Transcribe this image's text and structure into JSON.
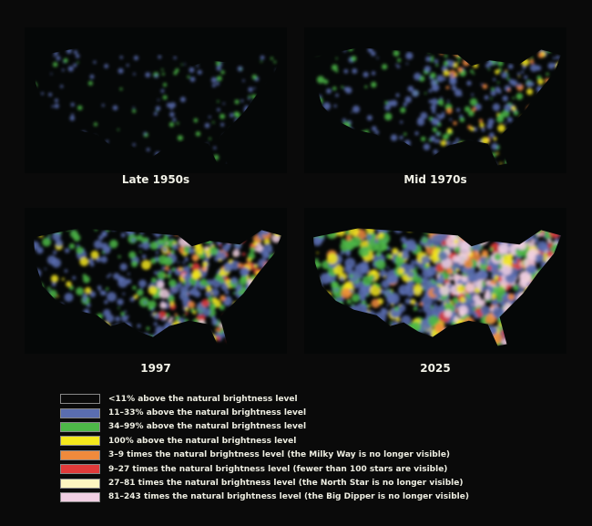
{
  "maps": [
    {
      "label": "Late 1950s",
      "level": 1
    },
    {
      "label": "Mid 1970s",
      "level": 2
    },
    {
      "label": "1997",
      "level": 3
    },
    {
      "label": "2025",
      "level": 4
    }
  ],
  "legend": [
    {
      "color": "#0a0a0a",
      "label": "<11% above the natural brightness level"
    },
    {
      "color": "#5a6db0",
      "label": "11–33% above the natural brightness level"
    },
    {
      "color": "#4db848",
      "label": "34–99% above the natural brightness level"
    },
    {
      "color": "#f4e81c",
      "label": "100% above the natural brightness level"
    },
    {
      "color": "#f08a3c",
      "label": "3–9 times the natural brightness level (the Milky Way is no longer visible)"
    },
    {
      "color": "#e03a3a",
      "label": "9–27 times the natural brightness level (fewer than 100 stars are visible)"
    },
    {
      "color": "#fdf6c0",
      "label": "27–81 times the natural brightness level (the North Star is no longer visible)"
    },
    {
      "color": "#f0cfe2",
      "label": "81–243 times the natural brightness level (the Big Dipper is no longer visible)"
    }
  ]
}
